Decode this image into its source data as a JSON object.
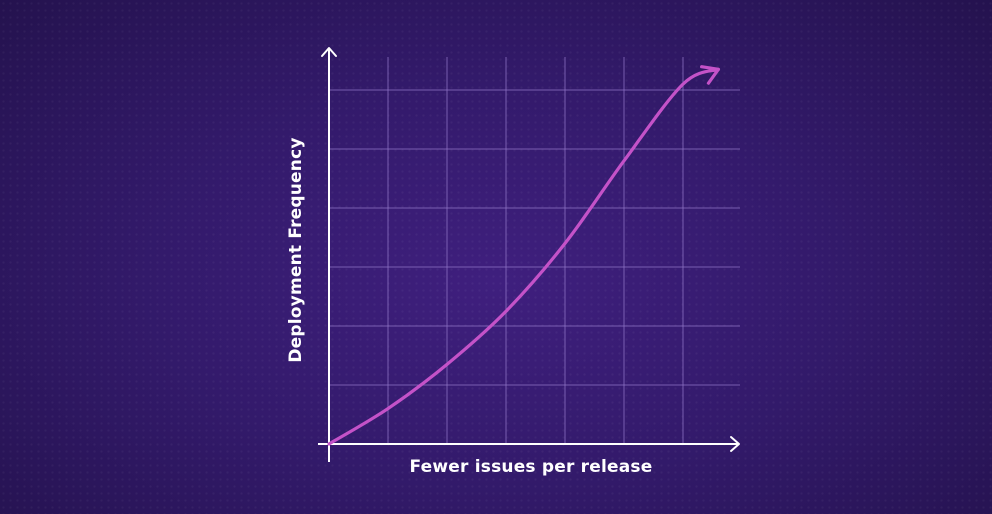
{
  "chart_data": {
    "type": "line",
    "title": "",
    "xlabel": "Fewer issues per release",
    "ylabel": "Deployment Frequency",
    "xlim": [
      0,
      7
    ],
    "ylim": [
      0,
      6.5
    ],
    "grid": true,
    "axis_tick_labels": false,
    "series": [
      {
        "x": [
          0,
          1,
          2,
          3,
          4,
          5,
          6,
          6.6
        ],
        "y": [
          0,
          0.6,
          1.35,
          2.25,
          3.4,
          4.8,
          6.1,
          6.35
        ],
        "color": "#c452c8",
        "end_marker": "arrow"
      }
    ]
  },
  "colors": {
    "background": "#331a6b",
    "axis": "#ffffff",
    "grid": "#8f74c6"
  }
}
